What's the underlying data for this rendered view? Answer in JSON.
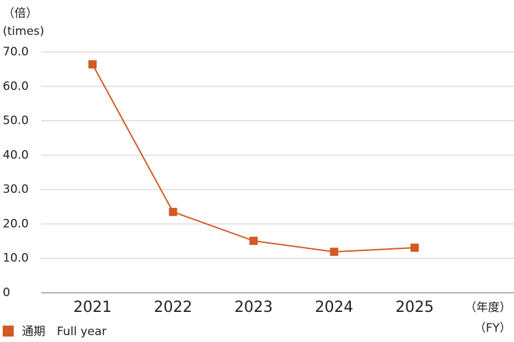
{
  "chart_data": {
    "type": "line",
    "ylabel": [
      "（倍）",
      "(times)"
    ],
    "xlabel": [
      "（年度）",
      "（FY）"
    ],
    "categories": [
      "2021",
      "2022",
      "2023",
      "2024",
      "2025"
    ],
    "series": [
      {
        "name": "通期　Full year",
        "color": "#d35a24",
        "values": [
          66.4,
          23.5,
          15.1,
          11.9,
          13.1
        ]
      }
    ],
    "ylim": [
      0,
      70
    ],
    "yticks": [
      0,
      {
        "value": 10,
        "label": "10.0"
      },
      {
        "value": 20,
        "label": "20.0"
      },
      {
        "value": 30,
        "label": "30.0"
      },
      {
        "value": 40,
        "label": "40.0"
      },
      {
        "value": 50,
        "label": "50.0"
      },
      {
        "value": 60,
        "label": "60.0"
      },
      {
        "value": 70,
        "label": "70.0"
      }
    ],
    "grid": true,
    "legend": "bottom-left"
  }
}
